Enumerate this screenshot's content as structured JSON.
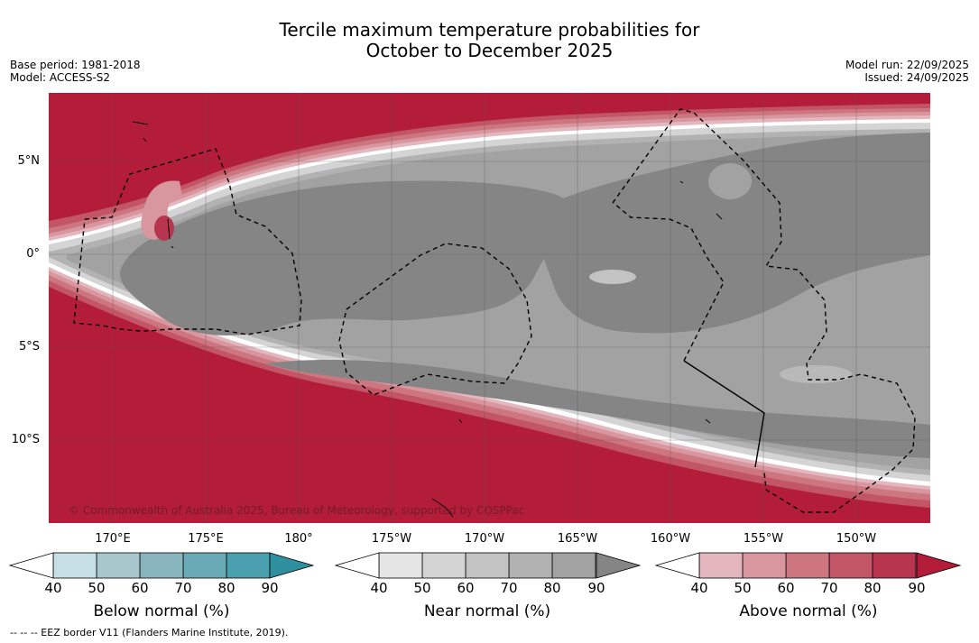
{
  "title": {
    "line1": "Tercile maximum temperature probabilities for",
    "line2": "October to December 2025"
  },
  "meta": {
    "base_period": "Base period: 1981-2018",
    "model": "Model: ACCESS-S2",
    "model_run": "Model run: 22/09/2025",
    "issued": "Issued: 24/09/2025"
  },
  "map": {
    "copyright": "© Commonwealth of Australia 2025, Bureau of Meteorology, supported by COSPPac",
    "lat_labels": [
      "5°N",
      "0°",
      "5°S",
      "10°S"
    ],
    "lon_labels": [
      "170°E",
      "175°E",
      "180°",
      "175°W",
      "170°W",
      "165°W",
      "160°W",
      "155°W",
      "150°W"
    ],
    "colors": {
      "above_dominant": "#b31d3a",
      "near_deep": "#858585",
      "near_light": "#a2a2a2"
    }
  },
  "colorbars": [
    {
      "title": "Below normal (%)",
      "ticks": [
        "40",
        "50",
        "60",
        "70",
        "80",
        "90"
      ],
      "colors": [
        "#c7e0e6",
        "#a8c7cd",
        "#89b5bf",
        "#6aa9b6",
        "#4aa0ae",
        "#2e8f9e"
      ]
    },
    {
      "title": "Near normal (%)",
      "ticks": [
        "40",
        "50",
        "60",
        "70",
        "80",
        "90"
      ],
      "colors": [
        "#e5e5e5",
        "#d4d4d4",
        "#c3c3c3",
        "#b2b2b2",
        "#a2a2a2",
        "#858585"
      ]
    },
    {
      "title": "Above normal (%)",
      "ticks": [
        "40",
        "50",
        "60",
        "70",
        "80",
        "90"
      ],
      "colors": [
        "#e3b7bd",
        "#d8969e",
        "#cd7680",
        "#c25666",
        "#b83550",
        "#b31d3a"
      ]
    }
  ],
  "footnote": "--  --  -- EEZ border V11 (Flanders Marine Institute, 2019)."
}
